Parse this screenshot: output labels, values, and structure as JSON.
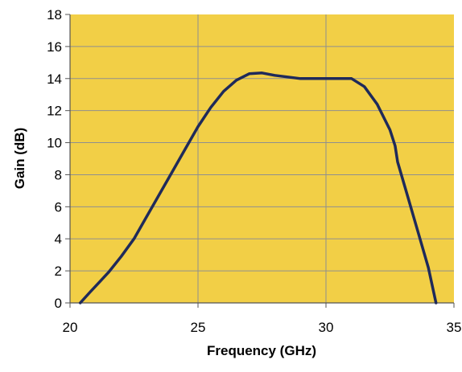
{
  "chart_data": {
    "type": "line",
    "xlabel": "Frequency (GHz)",
    "ylabel": "Gain (dB)",
    "xlim": [
      20,
      35
    ],
    "ylim": [
      0,
      18
    ],
    "x_ticks": [
      "20",
      "25",
      "30",
      "35"
    ],
    "y_ticks": [
      "0",
      "2",
      "4",
      "6",
      "8",
      "10",
      "12",
      "14",
      "16",
      "18"
    ],
    "grid": true,
    "legend": "none",
    "series": [
      {
        "x": [
          20.4,
          20.8,
          21.5,
          22,
          22.5,
          23,
          23.5,
          24,
          24.5,
          25,
          25.5,
          26,
          26.5,
          27,
          27.5,
          28,
          28.5,
          29,
          29.5,
          30,
          30.5,
          31,
          31.5,
          32,
          32.5,
          32.7,
          32.8,
          33.2,
          33.6,
          34,
          34.3
        ],
        "values": [
          0,
          0.7,
          1.9,
          2.9,
          4.0,
          5.4,
          6.8,
          8.2,
          9.6,
          11.0,
          12.2,
          13.2,
          13.9,
          14.3,
          14.35,
          14.2,
          14.1,
          14.0,
          14.0,
          14.0,
          14.0,
          14.0,
          13.5,
          12.4,
          10.8,
          9.8,
          8.8,
          6.6,
          4.4,
          2.2,
          0
        ]
      }
    ]
  },
  "colors": {
    "plot_background": "#f2cf46",
    "line": "#1f2a5a",
    "grid": "#8f8f8f",
    "axis": "#555555"
  }
}
